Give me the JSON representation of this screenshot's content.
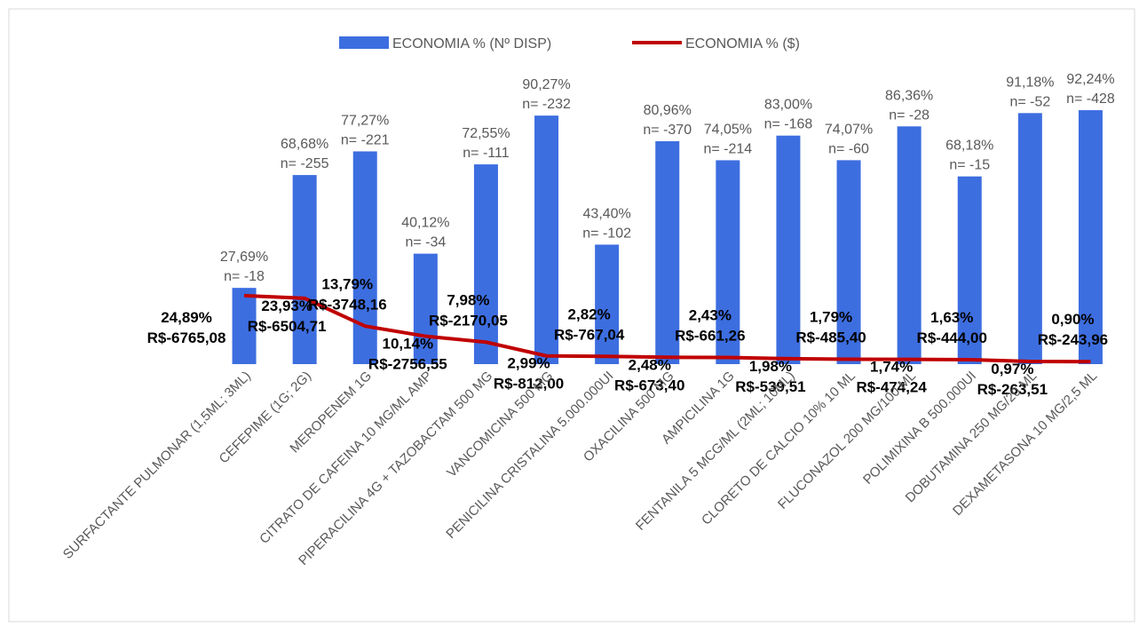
{
  "chart_data": {
    "type": "bar_line",
    "categories": [
      "SURFACTANTE PULMONAR (1,5ML; 3ML)",
      "CEFEPIME (1G; 2G)",
      "MEROPENEM 1G",
      "CITRATO DE CAFEINA 10 MG/ML AMP",
      "PIPERACILINA 4G + TAZOBACTAM 500 MG",
      "VANCOMICINA 500 MG",
      "PENICILINA CRISTALINA 5.000.000UI",
      "OXACILINA 500 MG",
      "AMPICILINA 1G",
      "FENTANILA 5 MCG/ML (2ML; 10ML)",
      "CLORETO DE CALCIO 10% 10 ML",
      "FLUCONAZOL 200 MG/100 ML",
      "POLIMIXINA B 500.000UI",
      "DOBUTAMINA 250 MG/20 ML",
      "DEXAMETASONA 10 MG/2,5 ML"
    ],
    "series": [
      {
        "name": "ECONOMIA % (Nº DISP)",
        "type": "bar",
        "color": "#3d6ee0",
        "values": [
          27.69,
          68.68,
          77.27,
          40.12,
          72.55,
          90.27,
          43.4,
          80.96,
          74.05,
          83.0,
          74.07,
          86.36,
          68.18,
          91.18,
          92.24
        ],
        "value_labels": [
          "27,69%",
          "68,68%",
          "77,27%",
          "40,12%",
          "72,55%",
          "90,27%",
          "43,40%",
          "80,96%",
          "74,05%",
          "83,00%",
          "74,07%",
          "86,36%",
          "68,18%",
          "91,18%",
          "92,24%"
        ],
        "n_values": [
          -18,
          -255,
          -221,
          -34,
          -111,
          -232,
          -102,
          -370,
          -214,
          -168,
          -60,
          -28,
          -15,
          -52,
          -428
        ],
        "n_labels": [
          "n= -18",
          "n= -255",
          "n= -221",
          "n= -34",
          "n= -111",
          "n= -232",
          "n= -102",
          "n= -370",
          "n= -214",
          "n= -168",
          "n= -60",
          "n= -28",
          "n= -15",
          "n= -52",
          "n= -428"
        ]
      },
      {
        "name": "ECONOMIA % ($)",
        "type": "line",
        "color": "#c00000",
        "values": [
          24.89,
          23.93,
          13.79,
          10.14,
          7.98,
          2.99,
          2.82,
          2.48,
          2.43,
          1.98,
          1.79,
          1.74,
          1.63,
          0.97,
          0.9
        ],
        "value_labels": [
          "24,89%",
          "23,93%",
          "13,79%",
          "10,14%",
          "7,98%",
          "2,99%",
          "2,82%",
          "2,48%",
          "2,43%",
          "1,98%",
          "1,79%",
          "1,74%",
          "1,63%",
          "0,97%",
          "0,90%"
        ],
        "savings": [
          -6765.08,
          -6504.71,
          -3748.16,
          -2756.55,
          -2170.05,
          -812.0,
          -767.04,
          -673.4,
          -661.26,
          -539.51,
          -485.4,
          -474.24,
          -444.0,
          -263.51,
          -243.96
        ],
        "savings_labels": [
          "R$-6765,08",
          "R$-6504,71",
          "R$-3748,16",
          "R$-2756,55",
          "R$-2170,05",
          "R$-812,00",
          "R$-767,04",
          "R$-673,40",
          "R$-661,26",
          "R$-539,51",
          "R$-485,40",
          "R$-474,24",
          "R$-444,00",
          "R$-263,51",
          "R$-243,96"
        ]
      }
    ],
    "legend": "top"
  }
}
